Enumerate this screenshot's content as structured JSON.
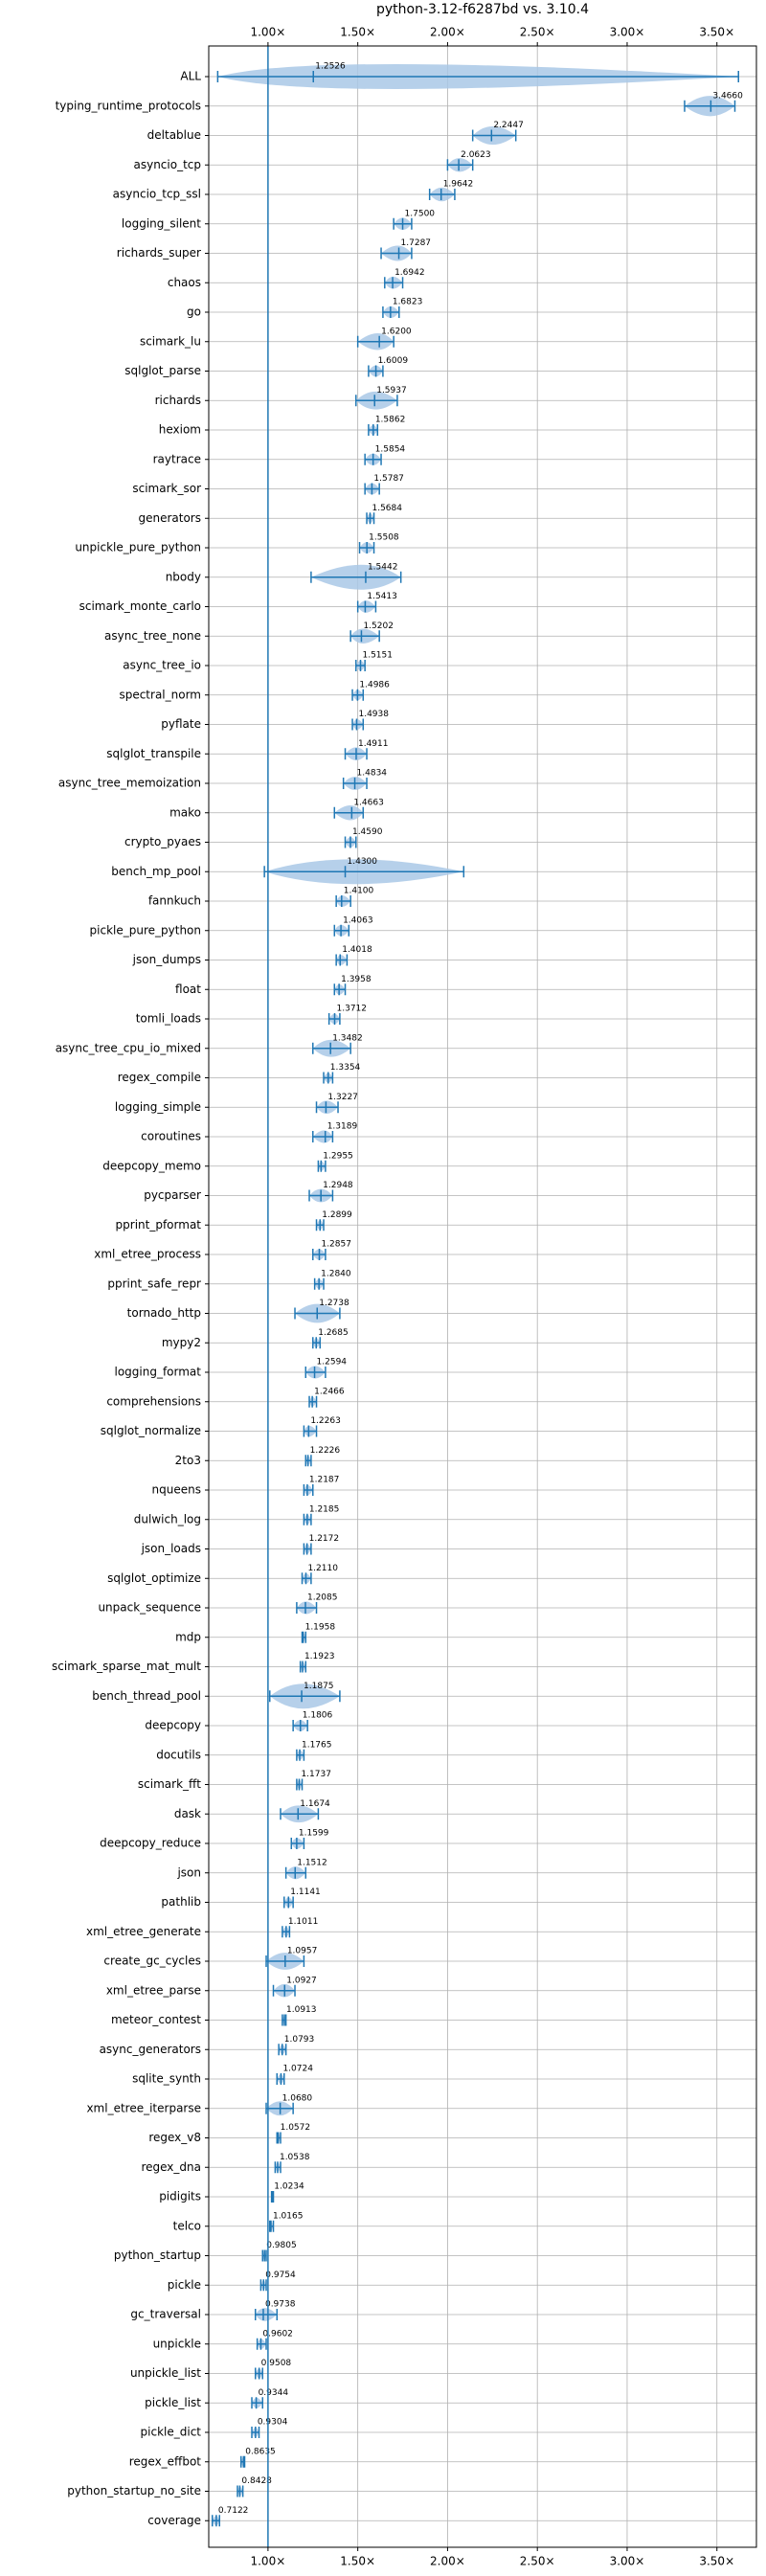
{
  "chart_data": {
    "type": "violin",
    "title": "python-3.12-f6287bd vs. 3.10.4",
    "categories": [
      "ALL",
      "typing_runtime_protocols",
      "deltablue",
      "asyncio_tcp",
      "asyncio_tcp_ssl",
      "logging_silent",
      "richards_super",
      "chaos",
      "go",
      "scimark_lu",
      "sqlglot_parse",
      "richards",
      "hexiom",
      "raytrace",
      "scimark_sor",
      "generators",
      "unpickle_pure_python",
      "nbody",
      "scimark_monte_carlo",
      "async_tree_none",
      "async_tree_io",
      "spectral_norm",
      "pyflate",
      "sqlglot_transpile",
      "async_tree_memoization",
      "mako",
      "crypto_pyaes",
      "bench_mp_pool",
      "fannkuch",
      "pickle_pure_python",
      "json_dumps",
      "float",
      "tomli_loads",
      "async_tree_cpu_io_mixed",
      "regex_compile",
      "logging_simple",
      "coroutines",
      "deepcopy_memo",
      "pycparser",
      "pprint_pformat",
      "xml_etree_process",
      "pprint_safe_repr",
      "tornado_http",
      "mypy2",
      "logging_format",
      "comprehensions",
      "sqlglot_normalize",
      "2to3",
      "nqueens",
      "dulwich_log",
      "json_loads",
      "sqlglot_optimize",
      "unpack_sequence",
      "mdp",
      "scimark_sparse_mat_mult",
      "bench_thread_pool",
      "deepcopy",
      "docutils",
      "scimark_fft",
      "dask",
      "deepcopy_reduce",
      "json",
      "pathlib",
      "xml_etree_generate",
      "create_gc_cycles",
      "xml_etree_parse",
      "meteor_contest",
      "async_generators",
      "sqlite_synth",
      "xml_etree_iterparse",
      "regex_v8",
      "regex_dna",
      "pidigits",
      "telco",
      "python_startup",
      "pickle",
      "gc_traversal",
      "unpickle",
      "unpickle_list",
      "pickle_list",
      "pickle_dict",
      "regex_effbot",
      "python_startup_no_site",
      "coverage"
    ],
    "values": [
      1.2526,
      3.466,
      2.2447,
      2.0623,
      1.9642,
      1.75,
      1.7287,
      1.6942,
      1.6823,
      1.62,
      1.6009,
      1.5937,
      1.5862,
      1.5854,
      1.5787,
      1.5684,
      1.5508,
      1.5442,
      1.5413,
      1.5202,
      1.5151,
      1.4986,
      1.4938,
      1.4911,
      1.4834,
      1.4663,
      1.459,
      1.43,
      1.41,
      1.4063,
      1.4018,
      1.3958,
      1.3712,
      1.3482,
      1.3354,
      1.3227,
      1.3189,
      1.2955,
      1.2948,
      1.2899,
      1.2857,
      1.284,
      1.2738,
      1.2685,
      1.2594,
      1.2466,
      1.2263,
      1.2226,
      1.2187,
      1.2185,
      1.2172,
      1.211,
      1.2085,
      1.1958,
      1.1923,
      1.1875,
      1.1806,
      1.1765,
      1.1737,
      1.1674,
      1.1599,
      1.1512,
      1.1141,
      1.1011,
      1.0957,
      1.0927,
      1.0913,
      1.0793,
      1.0724,
      1.068,
      1.0572,
      1.0538,
      1.0234,
      1.0165,
      0.9805,
      0.9754,
      0.9738,
      0.9602,
      0.9508,
      0.9344,
      0.9304,
      0.8635,
      0.8428,
      0.7122
    ],
    "value_labels": [
      "1.2526",
      "3.4660",
      "2.2447",
      "2.0623",
      "1.9642",
      "1.7500",
      "1.7287",
      "1.6942",
      "1.6823",
      "1.6200",
      "1.6009",
      "1.5937",
      "1.5862",
      "1.5854",
      "1.5787",
      "1.5684",
      "1.5508",
      "1.5442",
      "1.5413",
      "1.5202",
      "1.5151",
      "1.4986",
      "1.4938",
      "1.4911",
      "1.4834",
      "1.4663",
      "1.4590",
      "1.4300",
      "1.4100",
      "1.4063",
      "1.4018",
      "1.3958",
      "1.3712",
      "1.3482",
      "1.3354",
      "1.3227",
      "1.3189",
      "1.2955",
      "1.2948",
      "1.2899",
      "1.2857",
      "1.2840",
      "1.2738",
      "1.2685",
      "1.2594",
      "1.2466",
      "1.2263",
      "1.2226",
      "1.2187",
      "1.2185",
      "1.2172",
      "1.2110",
      "1.2085",
      "1.1958",
      "1.1923",
      "1.1875",
      "1.1806",
      "1.1765",
      "1.1737",
      "1.1674",
      "1.1599",
      "1.1512",
      "1.1141",
      "1.1011",
      "1.0957",
      "1.0927",
      "1.0913",
      "1.0793",
      "1.0724",
      "1.0680",
      "1.0572",
      "1.0538",
      "1.0234",
      "1.0165",
      "0.9805",
      "0.9754",
      "0.9738",
      "0.9602",
      "0.9508",
      "0.9344",
      "0.9304",
      "0.8635",
      "0.8428",
      "0.7122"
    ],
    "low": [
      0.72,
      3.32,
      2.14,
      2.0,
      1.9,
      1.7,
      1.63,
      1.65,
      1.64,
      1.5,
      1.56,
      1.49,
      1.56,
      1.54,
      1.54,
      1.55,
      1.51,
      1.24,
      1.5,
      1.46,
      1.49,
      1.47,
      1.47,
      1.43,
      1.42,
      1.37,
      1.43,
      0.98,
      1.38,
      1.37,
      1.38,
      1.37,
      1.34,
      1.25,
      1.31,
      1.27,
      1.25,
      1.28,
      1.23,
      1.27,
      1.25,
      1.26,
      1.15,
      1.25,
      1.21,
      1.23,
      1.2,
      1.21,
      1.2,
      1.2,
      1.2,
      1.19,
      1.16,
      1.19,
      1.18,
      1.01,
      1.14,
      1.16,
      1.16,
      1.07,
      1.13,
      1.1,
      1.09,
      1.08,
      0.99,
      1.03,
      1.08,
      1.06,
      1.05,
      0.99,
      1.05,
      1.04,
      1.02,
      1.01,
      0.97,
      0.96,
      0.93,
      0.94,
      0.93,
      0.91,
      0.91,
      0.85,
      0.83,
      0.69
    ],
    "high": [
      3.62,
      3.6,
      2.38,
      2.14,
      2.04,
      1.8,
      1.8,
      1.75,
      1.73,
      1.7,
      1.64,
      1.72,
      1.61,
      1.63,
      1.62,
      1.59,
      1.59,
      1.74,
      1.6,
      1.62,
      1.54,
      1.53,
      1.53,
      1.55,
      1.55,
      1.53,
      1.49,
      2.09,
      1.46,
      1.45,
      1.44,
      1.43,
      1.4,
      1.46,
      1.36,
      1.39,
      1.36,
      1.32,
      1.36,
      1.31,
      1.32,
      1.31,
      1.4,
      1.29,
      1.32,
      1.27,
      1.27,
      1.24,
      1.25,
      1.24,
      1.24,
      1.24,
      1.27,
      1.21,
      1.21,
      1.4,
      1.22,
      1.2,
      1.19,
      1.28,
      1.2,
      1.21,
      1.14,
      1.12,
      1.2,
      1.15,
      1.1,
      1.1,
      1.09,
      1.14,
      1.07,
      1.07,
      1.03,
      1.03,
      0.99,
      0.99,
      1.05,
      0.99,
      0.97,
      0.97,
      0.95,
      0.87,
      0.86,
      0.73
    ],
    "color": "#1f77b4",
    "violin_color": "#a9c8e6",
    "baseline": 1,
    "xlim": [
      0.67,
      3.72
    ],
    "xticks": [
      {
        "value": 1,
        "label": "1.00×"
      },
      {
        "value": 1.5,
        "label": "1.50×"
      },
      {
        "value": 2,
        "label": "2.00×"
      },
      {
        "value": 2.5,
        "label": "2.50×"
      },
      {
        "value": 3,
        "label": "3.00×"
      },
      {
        "value": 3.5,
        "label": "3.50×"
      }
    ],
    "grid": true
  }
}
